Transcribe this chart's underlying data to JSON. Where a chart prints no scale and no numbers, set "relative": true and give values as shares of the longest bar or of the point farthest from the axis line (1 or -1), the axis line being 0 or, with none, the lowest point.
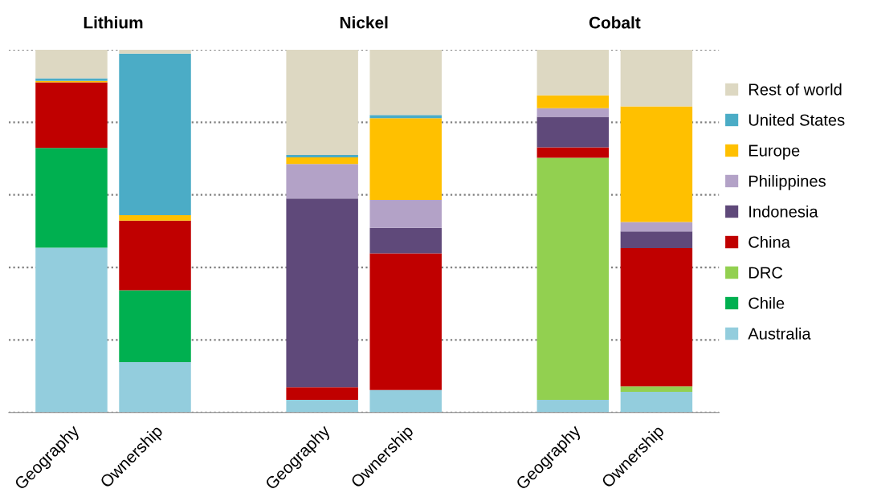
{
  "chart_data": {
    "type": "bar",
    "categories": [
      "Geography",
      "Ownership",
      null,
      "Geography",
      "Ownership",
      null,
      "Geography",
      "Ownership"
    ],
    "stacked": true,
    "relative": true,
    "grid": "y",
    "legend": "right",
    "annotations": [
      "Lithium",
      "Nickel",
      "Cobalt"
    ],
    "series": [
      {
        "name": "Australia",
        "color": "#93cddd",
        "values": [
          0.454,
          0.139,
          null,
          0.035,
          0.062,
          null,
          0.035,
          0.057
        ]
      },
      {
        "name": "Chile",
        "color": "#00b050",
        "values": [
          0.275,
          0.198,
          null,
          0,
          0,
          null,
          0,
          0
        ]
      },
      {
        "name": "DRC",
        "color": "#92d050",
        "values": [
          0,
          0,
          null,
          0,
          0,
          null,
          0.667,
          0.015
        ]
      },
      {
        "name": "China",
        "color": "#c00000",
        "values": [
          0.181,
          0.192,
          null,
          0.035,
          0.377,
          null,
          0.029,
          0.381
        ]
      },
      {
        "name": "Indonesia",
        "color": "#5f497a",
        "values": [
          0,
          0,
          null,
          0.52,
          0.07,
          null,
          0.084,
          0.046
        ]
      },
      {
        "name": "Philippines",
        "color": "#b3a2c7",
        "values": [
          0,
          0,
          null,
          0.095,
          0.077,
          null,
          0.024,
          0.026
        ]
      },
      {
        "name": "Europe",
        "color": "#ffc000",
        "values": [
          0.004,
          0.015,
          null,
          0.018,
          0.225,
          null,
          0.035,
          0.319
        ]
      },
      {
        "name": "United States",
        "color": "#4bacc6",
        "values": [
          0.007,
          0.445,
          null,
          0.007,
          0.009,
          null,
          0,
          0
        ]
      },
      {
        "name": "Rest of world",
        "color": "#ddd8c2",
        "values": [
          0.079,
          0.011,
          null,
          0.29,
          0.18,
          null,
          0.126,
          0.156
        ]
      }
    ]
  }
}
